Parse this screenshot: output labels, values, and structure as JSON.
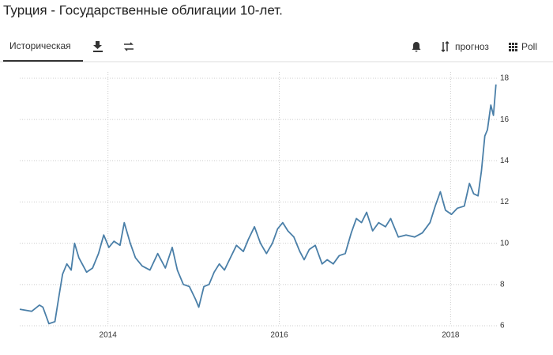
{
  "ui": {
    "title": "Турция - Государственные облигации 10-лет.",
    "tab": "Историческая",
    "forecast": "прогноз",
    "poll": "Poll"
  },
  "chart_data": {
    "type": "line",
    "x": [
      2012.97,
      2013.11,
      2013.2,
      2013.24,
      2013.31,
      2013.38,
      2013.43,
      2013.47,
      2013.52,
      2013.57,
      2013.61,
      2013.66,
      2013.75,
      2013.82,
      2013.89,
      2013.95,
      2014.01,
      2014.07,
      2014.14,
      2014.19,
      2014.26,
      2014.32,
      2014.4,
      2014.49,
      2014.58,
      2014.67,
      2014.75,
      2014.81,
      2014.88,
      2014.95,
      2015.02,
      2015.06,
      2015.12,
      2015.18,
      2015.24,
      2015.3,
      2015.36,
      2015.43,
      2015.5,
      2015.58,
      2015.64,
      2015.71,
      2015.78,
      2015.85,
      2015.92,
      2015.98,
      2016.04,
      2016.1,
      2016.17,
      2016.24,
      2016.29,
      2016.35,
      2016.42,
      2016.5,
      2016.56,
      2016.63,
      2016.7,
      2016.77,
      2016.84,
      2016.9,
      2016.96,
      2017.02,
      2017.09,
      2017.16,
      2017.24,
      2017.3,
      2017.39,
      2017.48,
      2017.58,
      2017.67,
      2017.76,
      2017.82,
      2017.88,
      2017.94,
      2018.01,
      2018.08,
      2018.16,
      2018.22,
      2018.27,
      2018.32,
      2018.36,
      2018.4,
      2018.43,
      2018.47,
      2018.5,
      2018.53
    ],
    "series": [
      {
        "color": "#4a7fa8",
        "values": [
          6.8,
          6.7,
          7.0,
          6.9,
          6.1,
          6.2,
          7.5,
          8.5,
          9.0,
          8.7,
          10.0,
          9.3,
          8.6,
          8.8,
          9.5,
          10.4,
          9.8,
          10.1,
          9.9,
          11.0,
          10.0,
          9.3,
          8.9,
          8.7,
          9.5,
          8.8,
          9.8,
          8.7,
          8.0,
          7.9,
          7.3,
          6.9,
          7.9,
          8.0,
          8.6,
          9.0,
          8.7,
          9.3,
          9.9,
          9.6,
          10.2,
          10.8,
          10.0,
          9.5,
          10.0,
          10.7,
          11.0,
          10.6,
          10.3,
          9.6,
          9.2,
          9.7,
          9.9,
          9.0,
          9.2,
          9.0,
          9.4,
          9.5,
          10.5,
          11.2,
          11.0,
          11.5,
          10.6,
          11.0,
          10.8,
          11.2,
          10.3,
          10.4,
          10.3,
          10.5,
          11.0,
          11.8,
          12.5,
          11.6,
          11.4,
          11.7,
          11.8,
          12.9,
          12.4,
          12.3,
          13.5,
          15.2,
          15.5,
          16.7,
          16.2,
          17.7
        ]
      }
    ],
    "xlim": [
      2012.97,
      2018.55
    ],
    "xticks": [
      2014,
      2016,
      2018
    ],
    "ylim": [
      6,
      18
    ],
    "yticks": [
      6,
      8,
      10,
      12,
      14,
      16,
      18
    ],
    "grid": true
  }
}
